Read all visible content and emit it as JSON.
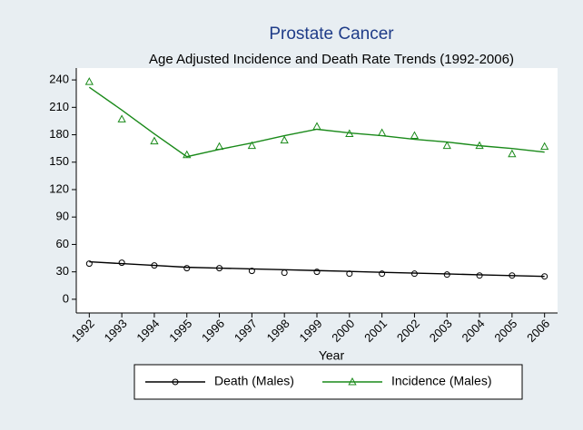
{
  "chart_data": {
    "type": "line",
    "title": "Prostate Cancer",
    "subtitle": "Age Adjusted Incidence and Death Rate Trends (1992-2006)",
    "x_label": "Year",
    "x": [
      1992,
      1993,
      1994,
      1995,
      1996,
      1997,
      1998,
      1999,
      2000,
      2001,
      2002,
      2003,
      2004,
      2005,
      2006
    ],
    "xlim": [
      1991.6,
      2006.4
    ],
    "xticks": [
      1992,
      1993,
      1994,
      1995,
      1996,
      1997,
      1998,
      1999,
      2000,
      2001,
      2002,
      2003,
      2004,
      2005,
      2006
    ],
    "ylim": [
      -15,
      253
    ],
    "yticks": [
      0,
      30,
      60,
      90,
      120,
      150,
      180,
      210,
      240
    ],
    "series": [
      {
        "name": "Death (Males)",
        "color": "#000000",
        "marker": "circle",
        "values": [
          39,
          40,
          37,
          34,
          34,
          31,
          29,
          30,
          28,
          28,
          28,
          27,
          26,
          26,
          25
        ],
        "fit": [
          41,
          39,
          37,
          35,
          34.1,
          33.2,
          32.3,
          31.4,
          30.5,
          29.5,
          28.6,
          27.7,
          26.8,
          25.9,
          25
        ]
      },
      {
        "name": "Incidence (Males)",
        "color": "#1a8a1a",
        "marker": "triangle",
        "values": [
          238,
          197,
          173,
          158,
          167,
          168,
          174,
          189,
          181,
          182,
          179,
          168,
          168,
          159,
          167
        ],
        "fit": [
          232,
          207,
          181,
          156,
          164,
          171,
          179,
          186,
          182,
          179,
          175,
          172,
          168,
          165,
          161
        ]
      }
    ]
  }
}
